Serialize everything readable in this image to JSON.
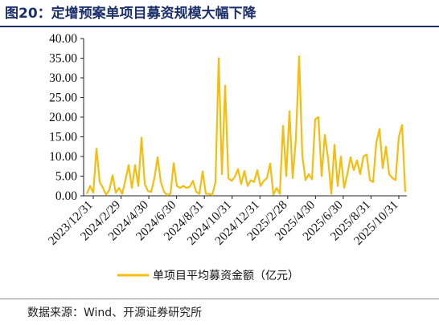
{
  "page": {
    "figure_title": "图20：定增预案单项目募资规模大幅下降",
    "source_note": "数据来源：Wind、开源证券研究所"
  },
  "chart_data": {
    "type": "line",
    "title": "",
    "xlabel": "",
    "ylabel": "",
    "ylim": [
      0,
      40
    ],
    "yticks": [
      "0.00",
      "5.00",
      "10.00",
      "15.00",
      "20.00",
      "25.00",
      "30.00",
      "35.00",
      "40.00"
    ],
    "xticks": [
      "2023/12/31",
      "2024/2/29",
      "2024/4/30",
      "2024/6/30",
      "2024/8/31",
      "2024/10/31",
      "2024/12/31",
      "2025/2/28",
      "2025/4/30",
      "2025/6/30",
      "2025/8/31",
      "2025/10/31"
    ],
    "grid": false,
    "legend_position": "bottom",
    "line_color": "#f5bd0f",
    "series": [
      {
        "name": "单项目平均募资金额（亿元）",
        "values": [
          0.5,
          2.5,
          0.8,
          12.0,
          3.5,
          2.0,
          0.3,
          1.5,
          5.2,
          0.8,
          2.0,
          0.5,
          4.0,
          7.8,
          2.0,
          7.8,
          2.5,
          14.8,
          3.0,
          1.2,
          1.0,
          4.5,
          9.8,
          3.5,
          1.0,
          0.2,
          0.5,
          8.3,
          2.5,
          2.0,
          2.5,
          2.0,
          2.3,
          3.8,
          1.0,
          0.5,
          6.2,
          0.5,
          0.5,
          0.2,
          3.5,
          35.0,
          5.5,
          28.0,
          4.5,
          3.8,
          4.8,
          6.8,
          3.0,
          6.3,
          2.5,
          4.0,
          3.5,
          6.5,
          2.5,
          3.8,
          4.5,
          8.2,
          0.3,
          2.0,
          0.5,
          17.8,
          5.0,
          21.5,
          4.5,
          14.5,
          35.5,
          10.2,
          4.0,
          5.5,
          4.2,
          19.5,
          20.0,
          5.0,
          15.5,
          9.5,
          0.5,
          13.0,
          2.5,
          10.0,
          2.0,
          5.5,
          9.8,
          6.5,
          9.0,
          5.5,
          10.0,
          10.5,
          4.0,
          3.5,
          13.5,
          17.0,
          7.0,
          12.5,
          5.5,
          4.5,
          4.0,
          15.0,
          18.0,
          1.0
        ]
      }
    ]
  }
}
